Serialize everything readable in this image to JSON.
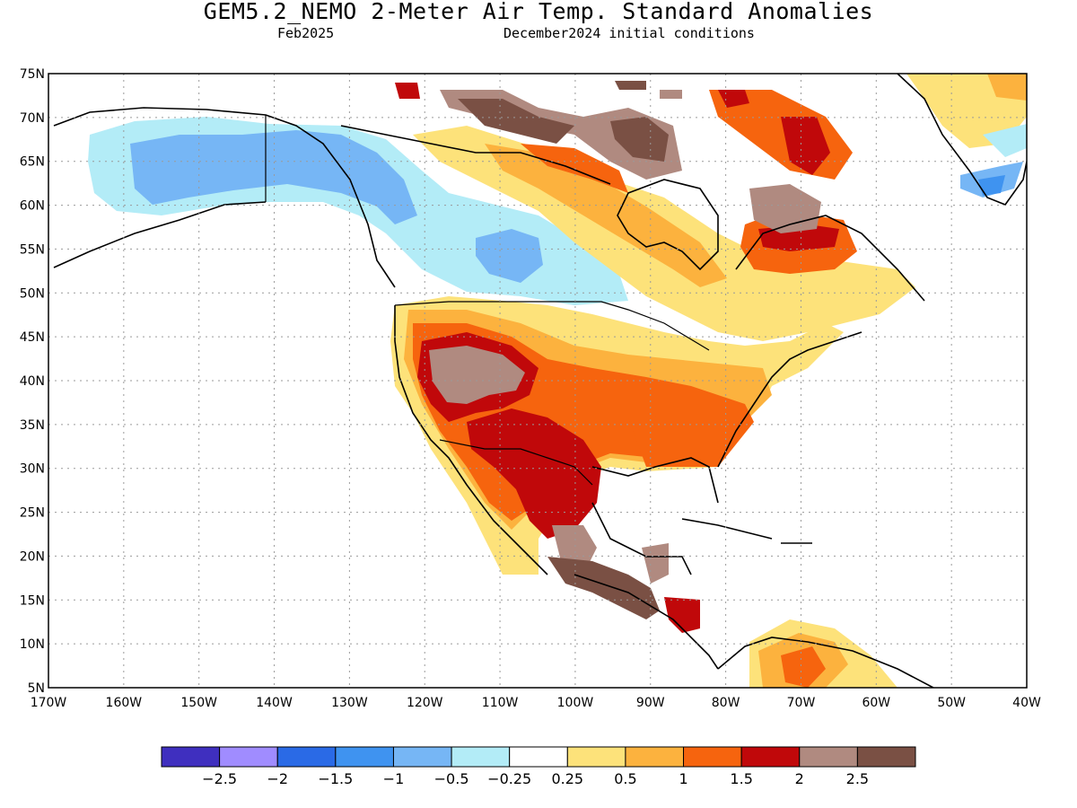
{
  "title": "GEM5.2_NEMO 2-Meter Air Temp. Standard Anomalies",
  "valid_month": "Feb2025",
  "init_conditions": "December2024 initial conditions",
  "latitude_labels": [
    "75N",
    "70N",
    "65N",
    "60N",
    "55N",
    "50N",
    "45N",
    "40N",
    "35N",
    "30N",
    "25N",
    "20N",
    "15N",
    "10N",
    "5N"
  ],
  "longitude_labels": [
    "170W",
    "160W",
    "150W",
    "140W",
    "130W",
    "120W",
    "110W",
    "100W",
    "90W",
    "80W",
    "70W",
    "60W",
    "50W",
    "40W"
  ],
  "colorbar": {
    "colors": [
      "#3f2fbf",
      "#a08cff",
      "#2a6ae6",
      "#3f93f0",
      "#76b6f5",
      "#b3ecf7",
      "#ffffff",
      "#fde27a",
      "#fcb23e",
      "#f6640e",
      "#c0080a",
      "#b08a80",
      "#7a5044"
    ],
    "labels": [
      "−2.5",
      "−2",
      "−1.5",
      "−1",
      "−0.5",
      "−0.25",
      "0.25",
      "0.5",
      "1",
      "1.5",
      "2",
      "2.5"
    ]
  },
  "map": {
    "extent": {
      "lon": [
        -170,
        -40
      ],
      "lat": [
        5,
        75
      ]
    },
    "grid": "dotted",
    "field": "2-meter air temperature standard anomaly"
  }
}
